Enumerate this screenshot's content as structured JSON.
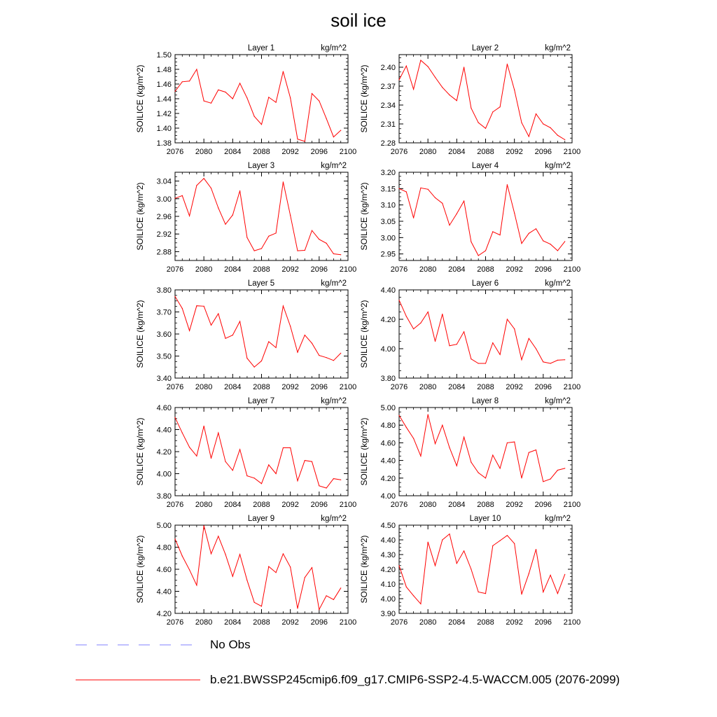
{
  "figure": {
    "title": "soil ice",
    "units_label": "kg/m^2",
    "legend": [
      {
        "label": "No Obs",
        "color": "#9b9bff",
        "style": "dashed"
      },
      {
        "label": "b.e21.BWSSP245cmip6.f09_g17.CMIP6-SSP2-4.5-WACCM.005 (2076-2099)",
        "color": "#ff0000",
        "style": "solid"
      }
    ]
  },
  "chart_data": [
    {
      "type": "line",
      "title": "Layer 1",
      "units": "kg/m^2",
      "ylabel": "SOILICE  (kg/m^2)",
      "xlabel": "",
      "x": [
        2076,
        2077,
        2078,
        2079,
        2080,
        2081,
        2082,
        2083,
        2084,
        2085,
        2086,
        2087,
        2088,
        2089,
        2090,
        2091,
        2092,
        2093,
        2094,
        2095,
        2096,
        2097,
        2098,
        2099
      ],
      "values": [
        1.45,
        1.463,
        1.464,
        1.48,
        1.437,
        1.434,
        1.452,
        1.449,
        1.44,
        1.461,
        1.441,
        1.416,
        1.405,
        1.442,
        1.435,
        1.477,
        1.441,
        1.385,
        1.382,
        1.447,
        1.437,
        1.413,
        1.388,
        1.397
      ],
      "xlim": [
        2076,
        2100
      ],
      "ylim": [
        1.38,
        1.5
      ],
      "xticks": [
        2076,
        2080,
        2084,
        2088,
        2092,
        2096,
        2100
      ],
      "yticks": [
        "1.38",
        "1.40",
        "1.42",
        "1.44",
        "1.46",
        "1.48",
        "1.50"
      ]
    },
    {
      "type": "line",
      "title": "Layer 2",
      "units": "kg/m^2",
      "ylabel": "SOILICE  (kg/m^2)",
      "xlabel": "",
      "x": [
        2076,
        2077,
        2078,
        2079,
        2080,
        2081,
        2082,
        2083,
        2084,
        2085,
        2086,
        2087,
        2088,
        2089,
        2090,
        2091,
        2092,
        2093,
        2094,
        2095,
        2096,
        2097,
        2098,
        2099
      ],
      "values": [
        2.38,
        2.402,
        2.365,
        2.411,
        2.401,
        2.384,
        2.368,
        2.356,
        2.347,
        2.4,
        2.335,
        2.312,
        2.303,
        2.329,
        2.337,
        2.405,
        2.364,
        2.312,
        2.29,
        2.326,
        2.31,
        2.304,
        2.292,
        2.285
      ],
      "xlim": [
        2076,
        2100
      ],
      "ylim": [
        2.28,
        2.42
      ],
      "xticks": [
        2076,
        2080,
        2084,
        2088,
        2092,
        2096,
        2100
      ],
      "yticks": [
        "2.28",
        "2.31",
        "2.34",
        "2.37",
        "2.40"
      ]
    },
    {
      "type": "line",
      "title": "Layer 3",
      "units": "kg/m^2",
      "ylabel": "SOILICE  (kg/m^2)",
      "xlabel": "",
      "x": [
        2076,
        2077,
        2078,
        2079,
        2080,
        2081,
        2082,
        2083,
        2084,
        2085,
        2086,
        2087,
        2088,
        2089,
        2090,
        2091,
        2092,
        2093,
        2094,
        2095,
        2096,
        2097,
        2098,
        2099
      ],
      "values": [
        3.001,
        3.007,
        2.961,
        3.03,
        3.046,
        3.024,
        2.979,
        2.942,
        2.963,
        3.018,
        2.912,
        2.882,
        2.887,
        2.915,
        2.922,
        3.038,
        2.962,
        2.882,
        2.883,
        2.928,
        2.908,
        2.899,
        2.875,
        2.873
      ],
      "xlim": [
        2076,
        2100
      ],
      "ylim": [
        2.86,
        3.06
      ],
      "xticks": [
        2076,
        2080,
        2084,
        2088,
        2092,
        2096,
        2100
      ],
      "yticks": [
        "2.88",
        "2.92",
        "2.96",
        "3.00",
        "3.04"
      ]
    },
    {
      "type": "line",
      "title": "Layer 4",
      "units": "kg/m^2",
      "ylabel": "SOILICE  (kg/m^2)",
      "xlabel": "",
      "x": [
        2076,
        2077,
        2078,
        2079,
        2080,
        2081,
        2082,
        2083,
        2084,
        2085,
        2086,
        2087,
        2088,
        2089,
        2090,
        2091,
        2092,
        2093,
        2094,
        2095,
        2096,
        2097,
        2098,
        2099
      ],
      "values": [
        3.15,
        3.14,
        3.06,
        3.152,
        3.148,
        3.122,
        3.105,
        3.038,
        3.073,
        3.112,
        2.987,
        2.945,
        2.96,
        3.018,
        3.008,
        3.162,
        3.075,
        2.982,
        3.013,
        3.027,
        2.99,
        2.98,
        2.96,
        2.988
      ],
      "xlim": [
        2076,
        2100
      ],
      "ylim": [
        2.93,
        3.2
      ],
      "xticks": [
        2076,
        2080,
        2084,
        2088,
        2092,
        2096,
        2100
      ],
      "yticks": [
        "2.95",
        "3.00",
        "3.05",
        "3.10",
        "3.15",
        "3.20"
      ]
    },
    {
      "type": "line",
      "title": "Layer 5",
      "units": "kg/m^2",
      "ylabel": "SOILICE  (kg/m^2)",
      "xlabel": "",
      "x": [
        2076,
        2077,
        2078,
        2079,
        2080,
        2081,
        2082,
        2083,
        2084,
        2085,
        2086,
        2087,
        2088,
        2089,
        2090,
        2091,
        2092,
        2093,
        2094,
        2095,
        2096,
        2097,
        2098,
        2099
      ],
      "values": [
        3.77,
        3.716,
        3.615,
        3.728,
        3.726,
        3.64,
        3.692,
        3.58,
        3.595,
        3.657,
        3.49,
        3.45,
        3.478,
        3.565,
        3.538,
        3.727,
        3.635,
        3.517,
        3.595,
        3.558,
        3.503,
        3.493,
        3.48,
        3.513
      ],
      "xlim": [
        2076,
        2100
      ],
      "ylim": [
        3.4,
        3.8
      ],
      "xticks": [
        2076,
        2080,
        2084,
        2088,
        2092,
        2096,
        2100
      ],
      "yticks": [
        "3.40",
        "3.50",
        "3.60",
        "3.70",
        "3.80"
      ]
    },
    {
      "type": "line",
      "title": "Layer 6",
      "units": "kg/m^2",
      "ylabel": "SOILICE  (kg/m^2)",
      "xlabel": "",
      "x": [
        2076,
        2077,
        2078,
        2079,
        2080,
        2081,
        2082,
        2083,
        2084,
        2085,
        2086,
        2087,
        2088,
        2089,
        2090,
        2091,
        2092,
        2093,
        2094,
        2095,
        2096,
        2097,
        2098,
        2099
      ],
      "values": [
        4.33,
        4.22,
        4.135,
        4.175,
        4.25,
        4.05,
        4.235,
        4.02,
        4.03,
        4.115,
        3.93,
        3.9,
        3.9,
        4.04,
        3.96,
        4.2,
        4.135,
        3.925,
        4.07,
        4.0,
        3.91,
        3.9,
        3.922,
        3.925
      ],
      "xlim": [
        2076,
        2100
      ],
      "ylim": [
        3.8,
        4.4
      ],
      "xticks": [
        2076,
        2080,
        2084,
        2088,
        2092,
        2096,
        2100
      ],
      "yticks": [
        "3.80",
        "4.00",
        "4.20",
        "4.40"
      ]
    },
    {
      "type": "line",
      "title": "Layer 7",
      "units": "kg/m^2",
      "ylabel": "SOILICE  (kg/m^2)",
      "xlabel": "",
      "x": [
        2076,
        2077,
        2078,
        2079,
        2080,
        2081,
        2082,
        2083,
        2084,
        2085,
        2086,
        2087,
        2088,
        2089,
        2090,
        2091,
        2092,
        2093,
        2094,
        2095,
        2096,
        2097,
        2098,
        2099
      ],
      "values": [
        4.51,
        4.37,
        4.24,
        4.16,
        4.432,
        4.14,
        4.37,
        4.11,
        4.03,
        4.22,
        3.98,
        3.96,
        3.91,
        4.08,
        4.0,
        4.235,
        4.235,
        3.935,
        4.12,
        4.11,
        3.89,
        3.87,
        3.955,
        3.945
      ],
      "xlim": [
        2076,
        2100
      ],
      "ylim": [
        3.8,
        4.6
      ],
      "xticks": [
        2076,
        2080,
        2084,
        2088,
        2092,
        2096,
        2100
      ],
      "yticks": [
        "3.80",
        "4.00",
        "4.20",
        "4.40",
        "4.60"
      ]
    },
    {
      "type": "line",
      "title": "Layer 8",
      "units": "kg/m^2",
      "ylabel": "SOILICE  (kg/m^2)",
      "xlabel": "",
      "x": [
        2076,
        2077,
        2078,
        2079,
        2080,
        2081,
        2082,
        2083,
        2084,
        2085,
        2086,
        2087,
        2088,
        2089,
        2090,
        2091,
        2092,
        2093,
        2094,
        2095,
        2096,
        2097,
        2098,
        2099
      ],
      "values": [
        4.91,
        4.775,
        4.65,
        4.45,
        4.92,
        4.59,
        4.8,
        4.545,
        4.34,
        4.665,
        4.38,
        4.26,
        4.2,
        4.46,
        4.31,
        4.6,
        4.61,
        4.2,
        4.49,
        4.52,
        4.16,
        4.19,
        4.29,
        4.31
      ],
      "xlim": [
        2076,
        2100
      ],
      "ylim": [
        4.0,
        5.0
      ],
      "xticks": [
        2076,
        2080,
        2084,
        2088,
        2092,
        2096,
        2100
      ],
      "yticks": [
        "4.00",
        "4.20",
        "4.40",
        "4.60",
        "4.80",
        "5.00"
      ]
    },
    {
      "type": "line",
      "title": "Layer 9",
      "units": "kg/m^2",
      "ylabel": "SOILICE  (kg/m^2)",
      "xlabel": "",
      "x": [
        2076,
        2077,
        2078,
        2079,
        2080,
        2081,
        2082,
        2083,
        2084,
        2085,
        2086,
        2087,
        2088,
        2089,
        2090,
        2091,
        2092,
        2093,
        2094,
        2095,
        2096,
        2097,
        2098,
        2099
      ],
      "values": [
        4.875,
        4.72,
        4.595,
        4.455,
        4.995,
        4.74,
        4.9,
        4.735,
        4.535,
        4.735,
        4.5,
        4.3,
        4.265,
        4.625,
        4.57,
        4.74,
        4.62,
        4.245,
        4.525,
        4.615,
        4.235,
        4.36,
        4.325,
        4.43
      ],
      "xlim": [
        2076,
        2100
      ],
      "ylim": [
        4.2,
        5.0
      ],
      "xticks": [
        2076,
        2080,
        2084,
        2088,
        2092,
        2096,
        2100
      ],
      "yticks": [
        "4.20",
        "4.40",
        "4.60",
        "4.80",
        "5.00"
      ]
    },
    {
      "type": "line",
      "title": "Layer 10",
      "units": "kg/m^2",
      "ylabel": "SOILICE  (kg/m^2)",
      "xlabel": "",
      "x": [
        2076,
        2077,
        2078,
        2079,
        2080,
        2081,
        2082,
        2083,
        2084,
        2085,
        2086,
        2087,
        2088,
        2089,
        2090,
        2091,
        2092,
        2093,
        2094,
        2095,
        2096,
        2097,
        2098,
        2099
      ],
      "values": [
        4.225,
        4.08,
        4.02,
        3.965,
        4.385,
        4.225,
        4.4,
        4.44,
        4.24,
        4.325,
        4.2,
        4.045,
        4.035,
        4.36,
        4.395,
        4.43,
        4.375,
        4.03,
        4.17,
        4.335,
        4.045,
        4.16,
        4.035,
        4.165
      ],
      "xlim": [
        2076,
        2100
      ],
      "ylim": [
        3.9,
        4.5
      ],
      "xticks": [
        2076,
        2080,
        2084,
        2088,
        2092,
        2096,
        2100
      ],
      "yticks": [
        "3.90",
        "4.00",
        "4.10",
        "4.20",
        "4.30",
        "4.40",
        "4.50"
      ]
    }
  ]
}
